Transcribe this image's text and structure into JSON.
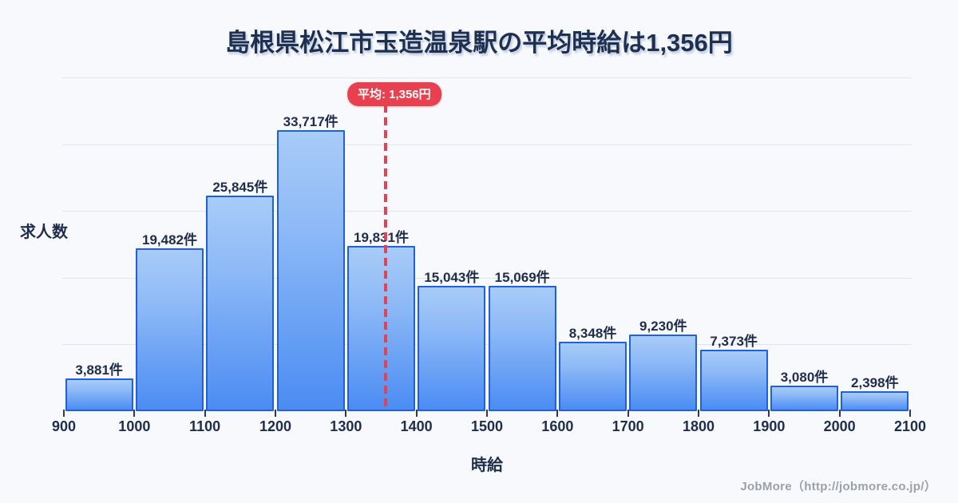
{
  "title": "島根県松江市玉造温泉駅の平均時給は1,356円",
  "footer": "JobMore（http://jobmore.co.jp/）",
  "colors": {
    "background": "#f7f9fc",
    "title_text": "#1e2f4f",
    "bar_fill_top": "#a8ccf8",
    "bar_fill_bottom": "#4b8cf3",
    "bar_border": "#2160dd",
    "gridline": "#dfe5ee",
    "average_accent": "#e8404e",
    "footer_text": "#9aa1ab"
  },
  "chart_data": {
    "type": "bar",
    "title": "島根県松江市玉造温泉駅の平均時給は1,356円",
    "xlabel": "時給",
    "ylabel": "求人数",
    "bin_edges": [
      900,
      1000,
      1100,
      1200,
      1300,
      1400,
      1500,
      1600,
      1700,
      1800,
      1900,
      2000,
      2100
    ],
    "x_tick_labels": [
      "900",
      "1000",
      "1100",
      "1200",
      "1300",
      "1400",
      "1500",
      "1600",
      "1700",
      "1800",
      "1900",
      "2000",
      "2100"
    ],
    "values": [
      3881,
      19482,
      25845,
      33717,
      19831,
      15043,
      15069,
      8348,
      9230,
      7373,
      3080,
      2398
    ],
    "value_labels": [
      "3,881件",
      "19,482件",
      "25,845件",
      "33,717件",
      "19,831件",
      "15,043件",
      "15,069件",
      "8,348件",
      "9,230件",
      "7,373件",
      "3,080件",
      "2,398件"
    ],
    "ylim": [
      0,
      40000
    ],
    "grid_step": 8000,
    "grid": "horizontal",
    "legend": "none",
    "average": 1356,
    "average_label": "平均: 1,356円"
  }
}
